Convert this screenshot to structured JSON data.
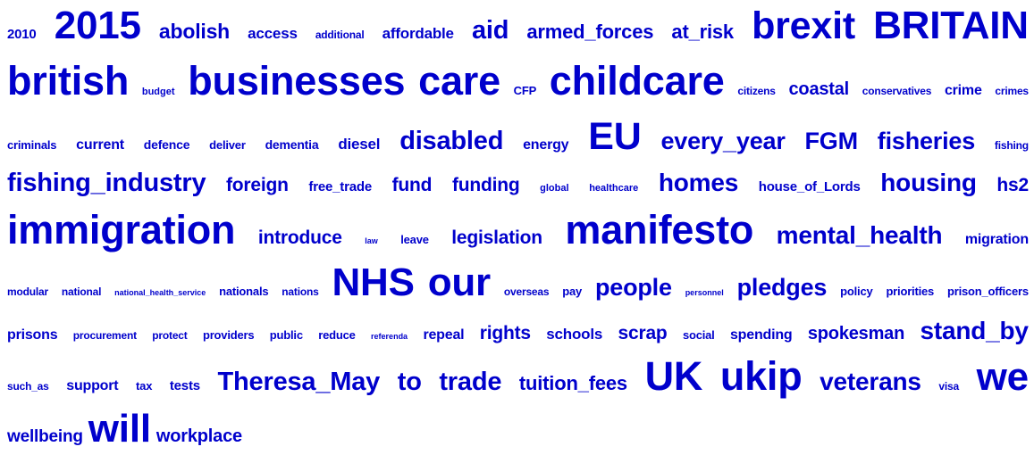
{
  "color": "#0000cc",
  "lines": [
    {
      "words": [
        {
          "t": "2010",
          "s": 15
        },
        {
          "t": "2015",
          "s": 44
        },
        {
          "t": "abolish",
          "s": 23
        },
        {
          "t": "access",
          "s": 17
        },
        {
          "t": "additional",
          "s": 12
        },
        {
          "t": "affordable",
          "s": 17
        },
        {
          "t": "aid",
          "s": 29
        },
        {
          "t": "armed_forces",
          "s": 22
        },
        {
          "t": "at_risk",
          "s": 22
        },
        {
          "t": "brexit",
          "s": 43
        },
        {
          "t": "BRITAIN",
          "s": 44
        }
      ]
    },
    {
      "words": [
        {
          "t": "british",
          "s": 45
        },
        {
          "t": "budget",
          "s": 11
        },
        {
          "t": "businesses",
          "s": 45
        },
        {
          "t": "care",
          "s": 45
        },
        {
          "t": "CFP",
          "s": 13
        },
        {
          "t": "childcare",
          "s": 45
        },
        {
          "t": "citizens",
          "s": 12
        },
        {
          "t": "coastal",
          "s": 20
        },
        {
          "t": "conservatives",
          "s": 12
        },
        {
          "t": "crime",
          "s": 16
        },
        {
          "t": "crimes",
          "s": 12
        }
      ]
    },
    {
      "words": [
        {
          "t": "criminals",
          "s": 13
        },
        {
          "t": "current",
          "s": 16
        },
        {
          "t": "defence",
          "s": 14
        },
        {
          "t": "deliver",
          "s": 13
        },
        {
          "t": "dementia",
          "s": 14
        },
        {
          "t": "diesel",
          "s": 17
        },
        {
          "t": "disabled",
          "s": 29
        },
        {
          "t": "energy",
          "s": 16
        },
        {
          "t": "EU",
          "s": 43
        },
        {
          "t": "every_year",
          "s": 27
        },
        {
          "t": "FGM",
          "s": 27
        },
        {
          "t": "fisheries",
          "s": 27
        },
        {
          "t": "fishing",
          "s": 12
        }
      ]
    },
    {
      "words": [
        {
          "t": "fishing_industry",
          "s": 29
        },
        {
          "t": "foreign",
          "s": 21
        },
        {
          "t": "free_trade",
          "s": 15
        },
        {
          "t": "fund",
          "s": 21
        },
        {
          "t": "funding",
          "s": 21
        },
        {
          "t": "global",
          "s": 11
        },
        {
          "t": "healthcare",
          "s": 11
        },
        {
          "t": "homes",
          "s": 28
        },
        {
          "t": "house_of_Lords",
          "s": 15
        },
        {
          "t": "housing",
          "s": 28
        },
        {
          "t": "hs2",
          "s": 21
        }
      ]
    },
    {
      "words": [
        {
          "t": "immigration",
          "s": 45
        },
        {
          "t": "introduce",
          "s": 21
        },
        {
          "t": "law",
          "s": 9
        },
        {
          "t": "leave",
          "s": 13
        },
        {
          "t": "legislation",
          "s": 21
        },
        {
          "t": "manifesto",
          "s": 45
        },
        {
          "t": "mental_health",
          "s": 28
        },
        {
          "t": "migration",
          "s": 16
        }
      ]
    },
    {
      "words": [
        {
          "t": "modular",
          "s": 12
        },
        {
          "t": "national",
          "s": 12
        },
        {
          "t": "national_health_service",
          "s": 9
        },
        {
          "t": "nationals",
          "s": 13
        },
        {
          "t": "nations",
          "s": 12
        },
        {
          "t": "NHS",
          "s": 44
        },
        {
          "t": "our",
          "s": 44
        },
        {
          "t": "overseas",
          "s": 12
        },
        {
          "t": "pay",
          "s": 13
        },
        {
          "t": "people",
          "s": 27
        },
        {
          "t": "personnel",
          "s": 9
        },
        {
          "t": "pledges",
          "s": 27
        },
        {
          "t": "policy",
          "s": 13
        },
        {
          "t": "priorities",
          "s": 13
        },
        {
          "t": "prison_officers",
          "s": 13
        }
      ]
    },
    {
      "words": [
        {
          "t": "prisons",
          "s": 16
        },
        {
          "t": "procurement",
          "s": 12
        },
        {
          "t": "protect",
          "s": 12
        },
        {
          "t": "providers",
          "s": 13
        },
        {
          "t": "public",
          "s": 13
        },
        {
          "t": "reduce",
          "s": 13
        },
        {
          "t": "referenda",
          "s": 9
        },
        {
          "t": "repeal",
          "s": 16
        },
        {
          "t": "rights",
          "s": 21
        },
        {
          "t": "schools",
          "s": 17
        },
        {
          "t": "scrap",
          "s": 21
        },
        {
          "t": "social",
          "s": 13
        },
        {
          "t": "spending",
          "s": 16
        },
        {
          "t": "spokesman",
          "s": 20
        },
        {
          "t": "stand_by",
          "s": 28
        }
      ]
    },
    {
      "words": [
        {
          "t": "such_as",
          "s": 12
        },
        {
          "t": "support",
          "s": 16
        },
        {
          "t": "tax",
          "s": 13
        },
        {
          "t": "tests",
          "s": 15
        },
        {
          "t": "Theresa_May",
          "s": 29
        },
        {
          "t": "to",
          "s": 29
        },
        {
          "t": "trade",
          "s": 29
        },
        {
          "t": "tuition_fees",
          "s": 22
        },
        {
          "t": "UK",
          "s": 45
        },
        {
          "t": "ukip",
          "s": 45
        },
        {
          "t": "veterans",
          "s": 28
        },
        {
          "t": "visa",
          "s": 12
        },
        {
          "t": "we",
          "s": 44
        }
      ]
    },
    {
      "left": true,
      "words": [
        {
          "t": "wellbeing",
          "s": 19
        },
        {
          "t": "will",
          "s": 44
        },
        {
          "t": "workplace",
          "s": 20
        }
      ]
    }
  ]
}
